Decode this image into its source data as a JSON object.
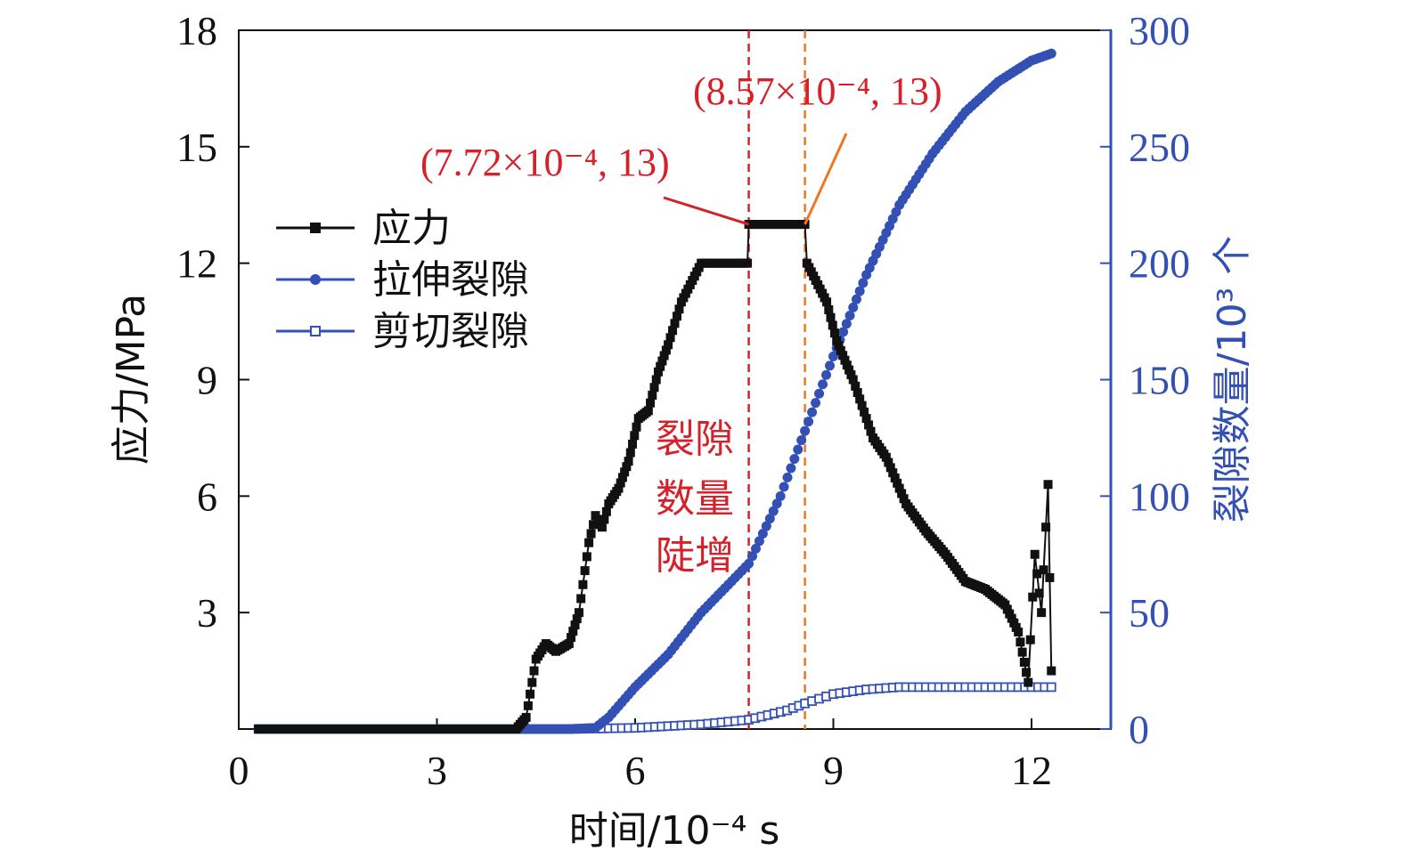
{
  "chart_data": {
    "type": "line",
    "xlabel": "时间/10⁻⁴ s",
    "ylabel_left": "应力/MPa",
    "ylabel_right": "裂隙数量/10³ 个",
    "xlim": [
      0,
      13.2
    ],
    "ylim_left": [
      0,
      18
    ],
    "ylim_right": [
      0,
      300
    ],
    "xticks": [
      "0",
      "3",
      "6",
      "9",
      "12"
    ],
    "yticks_left": [
      "3",
      "6",
      "9",
      "12",
      "15",
      "18"
    ],
    "yticks_right": [
      "0",
      "50",
      "100",
      "150",
      "200",
      "250",
      "300"
    ],
    "grid": false,
    "legend_position": "upper-left",
    "legend": [
      "应力",
      "拉伸裂隙",
      "剪切裂隙"
    ],
    "colors": {
      "stress": "#111111",
      "tensile": "#3350b4",
      "shear": "#3350b4",
      "red": "#d6202a",
      "orange": "#ee7722"
    },
    "series": [
      {
        "name": "应力",
        "axis": "left",
        "marker": "filled-square",
        "x": [
          0.3,
          4.2,
          4.35,
          4.5,
          4.65,
          4.8,
          5.0,
          5.15,
          5.3,
          5.4,
          5.5,
          5.6,
          5.75,
          5.9,
          6.05,
          6.2,
          6.35,
          6.5,
          6.7,
          7.0,
          7.7,
          7.72,
          8.57,
          8.6,
          8.9,
          9.05,
          9.3,
          9.6,
          9.8,
          10.1,
          10.4,
          10.7,
          11.0,
          11.3,
          11.6,
          11.8,
          11.95,
          12.05,
          12.15,
          12.25,
          12.3
        ],
        "y": [
          0,
          0,
          0.3,
          1.8,
          2.2,
          2.0,
          2.2,
          3.0,
          4.8,
          5.5,
          5.2,
          5.8,
          6.2,
          6.9,
          8.0,
          8.2,
          9.2,
          9.9,
          11.0,
          12.0,
          12.0,
          13.0,
          13.0,
          12.0,
          11.0,
          10.0,
          9.0,
          7.5,
          7.0,
          5.8,
          5.1,
          4.5,
          3.8,
          3.6,
          3.2,
          2.5,
          1.2,
          4.5,
          3.0,
          6.3,
          1.5
        ]
      },
      {
        "name": "拉伸裂隙",
        "axis": "right",
        "marker": "filled-circle",
        "x": [
          0.3,
          5.0,
          5.4,
          5.6,
          6.0,
          6.5,
          7.0,
          7.72,
          8.2,
          8.57,
          9.0,
          9.5,
          10.0,
          10.5,
          11.0,
          11.5,
          12.0,
          12.3
        ],
        "y": [
          0,
          0,
          0.5,
          5,
          18,
          32,
          50,
          71,
          100,
          128,
          160,
          195,
          225,
          247,
          265,
          278,
          287,
          290
        ]
      },
      {
        "name": "剪切裂隙",
        "axis": "right",
        "marker": "open-square",
        "x": [
          0.3,
          5.0,
          6.0,
          7.0,
          7.72,
          8.3,
          8.57,
          9.0,
          9.5,
          10.0,
          10.5,
          11.0,
          11.5,
          12.0,
          12.3
        ],
        "y": [
          0,
          0,
          0.5,
          2,
          4,
          8,
          11,
          15,
          17,
          18,
          18,
          18,
          18,
          18,
          18
        ]
      }
    ],
    "annotations": {
      "vline1": {
        "x": 7.72
      },
      "vline2": {
        "x": 8.57
      },
      "label1": "(7.72×10⁻⁴, 13)",
      "label2": "(8.57×10⁻⁴, 13)",
      "note_lines": [
        "裂隙",
        "数量",
        "陡增"
      ]
    }
  }
}
